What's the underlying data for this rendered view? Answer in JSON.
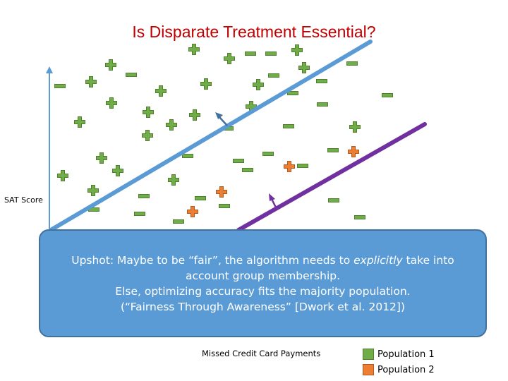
{
  "title": "Is Disparate Treatment Essential?",
  "y_axis_label": "SAT Score",
  "x_axis_label": "Missed Credit Card Payments",
  "callout": {
    "line1_pre": "Upshot: Maybe to be “fair”, the algorithm needs to ",
    "line1_em": "explicitly",
    "line1_post": " take into",
    "line2": "account group membership.",
    "line3": "Else, optimizing accuracy fits the majority population.",
    "line4": "(“Fairness Through Awareness” [Dwork et al. 2012])"
  },
  "legend": [
    {
      "label": "Population 1",
      "color": "#70ad47"
    },
    {
      "label": "Population 2",
      "color": "#ed7d31"
    }
  ],
  "colors": {
    "title": "#c00000",
    "population_1": "#70ad47",
    "population_1_outline": "#507e32",
    "population_2": "#ed7d31",
    "population_2_outline": "#ae5a21",
    "classifier_1": "#5b9bd5",
    "classifier_2": "#7030a0",
    "axis": "#5b9bd5",
    "callout_fill": "#5b9bd5"
  },
  "icons": {
    "positive": "plus-icon",
    "negative": "minus-icon"
  }
}
